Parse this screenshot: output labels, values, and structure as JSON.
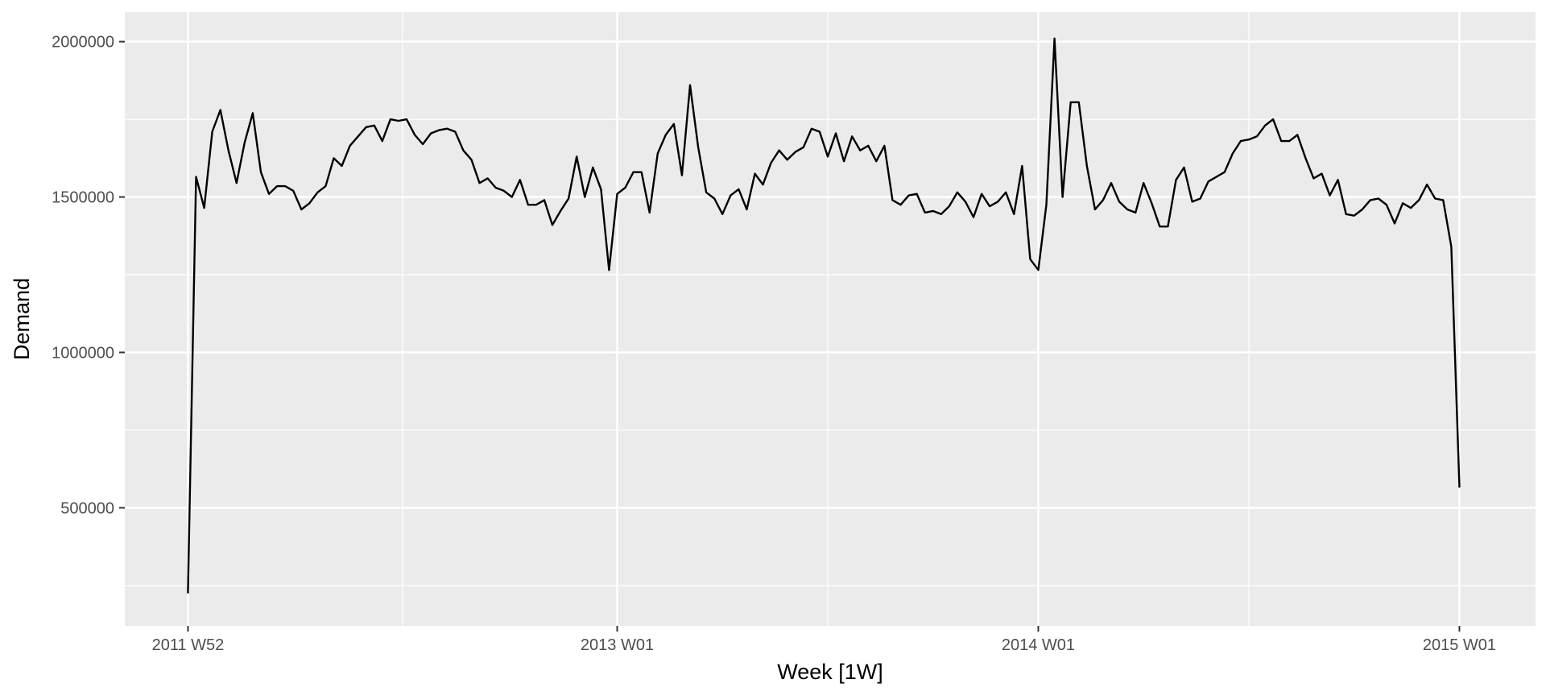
{
  "chart_data": {
    "type": "line",
    "title": "",
    "xlabel": "Week [1W]",
    "ylabel": "Demand",
    "x_ticks": [
      "2011 W52",
      "2013 W01",
      "2014 W01",
      "2015 W01"
    ],
    "y_ticks": [
      500000,
      1000000,
      1500000,
      2000000
    ],
    "y_tick_labels": [
      "500000",
      "1000000",
      "1500000",
      "2000000"
    ],
    "ylim": [
      120000,
      2095000
    ],
    "x_range_weeks": [
      -7.8,
      166.4
    ],
    "grid": true,
    "background": "#ebebeb",
    "grid_color": "#ffffff",
    "line_color": "#000000",
    "series": [
      {
        "x_unit": "weeks since 2011 W52",
        "values": [
          225000,
          1565000,
          1465000,
          1710000,
          1780000,
          1650000,
          1545000,
          1675000,
          1770000,
          1580000,
          1510000,
          1535000,
          1535000,
          1520000,
          1460000,
          1480000,
          1515000,
          1535000,
          1625000,
          1600000,
          1665000,
          1695000,
          1725000,
          1730000,
          1680000,
          1750000,
          1745000,
          1750000,
          1700000,
          1670000,
          1705000,
          1715000,
          1720000,
          1710000,
          1650000,
          1620000,
          1545000,
          1560000,
          1530000,
          1520000,
          1500000,
          1555000,
          1475000,
          1475000,
          1490000,
          1410000,
          1455000,
          1495000,
          1630000,
          1500000,
          1595000,
          1525000,
          1265000,
          1510000,
          1530000,
          1580000,
          1580000,
          1450000,
          1640000,
          1700000,
          1735000,
          1570000,
          1860000,
          1660000,
          1515000,
          1495000,
          1445000,
          1505000,
          1525000,
          1460000,
          1575000,
          1540000,
          1610000,
          1650000,
          1620000,
          1645000,
          1660000,
          1720000,
          1710000,
          1630000,
          1705000,
          1615000,
          1695000,
          1650000,
          1665000,
          1615000,
          1665000,
          1490000,
          1475000,
          1505000,
          1510000,
          1450000,
          1455000,
          1445000,
          1470000,
          1515000,
          1485000,
          1435000,
          1510000,
          1470000,
          1485000,
          1515000,
          1445000,
          1600000,
          1300000,
          1265000,
          1475000,
          2010000,
          1500000,
          1805000,
          1805000,
          1600000,
          1460000,
          1490000,
          1545000,
          1485000,
          1460000,
          1450000,
          1545000,
          1480000,
          1405000,
          1405000,
          1555000,
          1595000,
          1485000,
          1495000,
          1550000,
          1565000,
          1580000,
          1640000,
          1680000,
          1685000,
          1695000,
          1730000,
          1750000,
          1680000,
          1680000,
          1700000,
          1625000,
          1560000,
          1575000,
          1505000,
          1555000,
          1445000,
          1440000,
          1460000,
          1490000,
          1495000,
          1475000,
          1415000,
          1480000,
          1465000,
          1490000,
          1540000,
          1495000,
          1490000,
          1340000,
          565000
        ]
      }
    ]
  }
}
